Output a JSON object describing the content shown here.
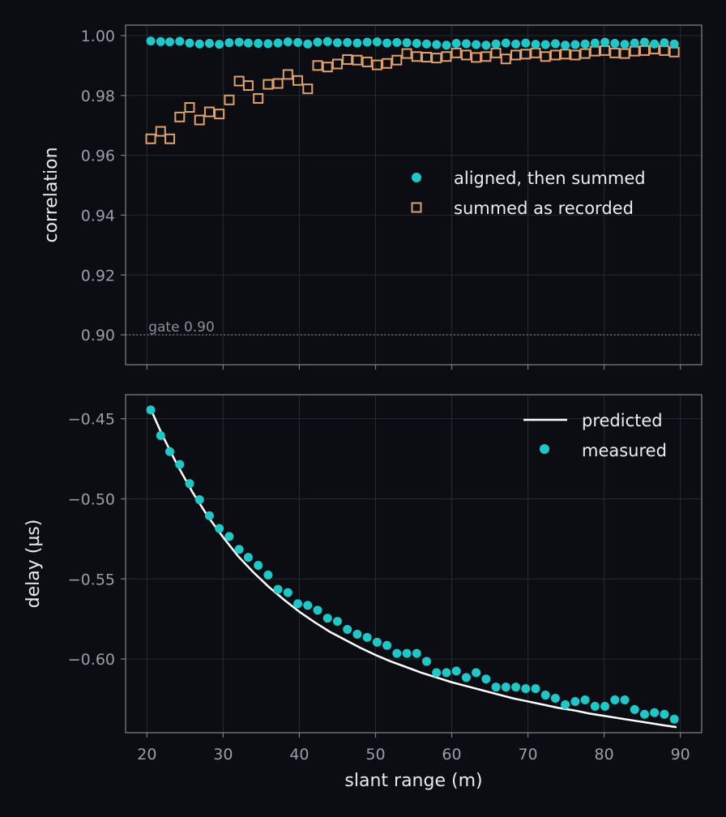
{
  "colors": {
    "background": "#0b0d12",
    "aligned": "#1ec8c8",
    "recorded": "#e0a06a",
    "predicted": "#ffffff",
    "measured": "#1ec8c8",
    "grid": "#262a31",
    "spine": "#7a7d82"
  },
  "chart_data": [
    {
      "type": "scatter",
      "ylabel": "correlation",
      "xlabel": "",
      "xlim": [
        17.2,
        92.8
      ],
      "ylim": [
        0.89,
        1.0035
      ],
      "xticks": [
        20,
        30,
        40,
        50,
        60,
        70,
        80,
        90
      ],
      "yticks": [
        0.9,
        0.92,
        0.94,
        0.96,
        0.98,
        1.0
      ],
      "ytick_labels": [
        "0.90",
        "0.92",
        "0.94",
        "0.96",
        "0.98",
        "1.00"
      ],
      "grid": true,
      "legend_position": "right",
      "annotations": [
        {
          "text": "gate 0.90",
          "y": 0.9
        }
      ],
      "reference_line": {
        "y": 0.9,
        "style": "dotted"
      },
      "series": [
        {
          "name": "aligned, then summed",
          "marker": "circle",
          "x": [
            20.5,
            21.8,
            23.0,
            24.3,
            25.6,
            26.9,
            28.2,
            29.5,
            30.8,
            32.1,
            33.3,
            34.6,
            35.9,
            37.2,
            38.5,
            39.8,
            41.1,
            42.4,
            43.7,
            45.0,
            46.3,
            47.6,
            48.9,
            50.2,
            51.5,
            52.8,
            54.1,
            55.4,
            56.7,
            58.0,
            59.3,
            60.6,
            61.9,
            63.2,
            64.5,
            65.8,
            67.1,
            68.4,
            69.7,
            71.0,
            72.3,
            73.6,
            74.9,
            76.2,
            77.5,
            78.8,
            80.1,
            81.4,
            82.7,
            84.0,
            85.3,
            86.6,
            87.9,
            89.2
          ],
          "y": [
            0.9982,
            0.998,
            0.9979,
            0.9981,
            0.9975,
            0.9972,
            0.9974,
            0.9971,
            0.9976,
            0.9978,
            0.9975,
            0.9974,
            0.9973,
            0.9975,
            0.9979,
            0.9977,
            0.9972,
            0.9978,
            0.998,
            0.9976,
            0.9977,
            0.9975,
            0.9978,
            0.9979,
            0.9975,
            0.9977,
            0.9976,
            0.9974,
            0.9972,
            0.997,
            0.9968,
            0.9974,
            0.9973,
            0.997,
            0.9968,
            0.9972,
            0.9975,
            0.9972,
            0.9975,
            0.9971,
            0.997,
            0.9973,
            0.9968,
            0.997,
            0.9972,
            0.9975,
            0.9978,
            0.9974,
            0.9971,
            0.9975,
            0.9978,
            0.9972,
            0.9976,
            0.9972
          ]
        },
        {
          "name": "summed as recorded",
          "marker": "square",
          "x": [
            20.5,
            21.8,
            23.0,
            24.3,
            25.6,
            26.9,
            28.2,
            29.5,
            30.8,
            32.1,
            33.3,
            34.6,
            35.9,
            37.2,
            38.5,
            39.8,
            41.1,
            42.4,
            43.7,
            45.0,
            46.3,
            47.6,
            48.9,
            50.2,
            51.5,
            52.8,
            54.1,
            55.4,
            56.7,
            58.0,
            59.3,
            60.6,
            61.9,
            63.2,
            64.5,
            65.8,
            67.1,
            68.4,
            69.7,
            71.0,
            72.3,
            73.6,
            74.9,
            76.2,
            77.5,
            78.8,
            80.1,
            81.4,
            82.7,
            84.0,
            85.3,
            86.6,
            87.9,
            89.2
          ],
          "y": [
            0.9655,
            0.968,
            0.9655,
            0.9728,
            0.976,
            0.9718,
            0.9745,
            0.9738,
            0.9785,
            0.9848,
            0.9833,
            0.979,
            0.9837,
            0.984,
            0.987,
            0.985,
            0.9822,
            0.99,
            0.9895,
            0.9905,
            0.992,
            0.9918,
            0.9912,
            0.9902,
            0.9907,
            0.9918,
            0.994,
            0.993,
            0.9928,
            0.9925,
            0.993,
            0.9942,
            0.9935,
            0.9927,
            0.993,
            0.9942,
            0.9922,
            0.9935,
            0.9938,
            0.9942,
            0.993,
            0.9935,
            0.9938,
            0.9935,
            0.994,
            0.9948,
            0.995,
            0.9942,
            0.994,
            0.9948,
            0.995,
            0.9955,
            0.995,
            0.9945
          ]
        }
      ]
    },
    {
      "type": "line",
      "xlabel": "slant range (m)",
      "ylabel": "delay (µs)",
      "xlim": [
        17.2,
        92.8
      ],
      "ylim": [
        -0.646,
        -0.435
      ],
      "xticks": [
        20,
        30,
        40,
        50,
        60,
        70,
        80,
        90
      ],
      "yticks": [
        -0.6,
        -0.55,
        -0.5,
        -0.45
      ],
      "ytick_labels": [
        "−0.60",
        "−0.55",
        "−0.50",
        "−0.45"
      ],
      "grid": true,
      "legend_position": "top-right",
      "series": [
        {
          "name": "predicted",
          "style": "line",
          "x": [
            20.5,
            22,
            24,
            26,
            28,
            30,
            32,
            34,
            36,
            38,
            40,
            42,
            44,
            46,
            48,
            50,
            52,
            54,
            56,
            58,
            60,
            62,
            64,
            66,
            68,
            70,
            72,
            74,
            76,
            78,
            80,
            82,
            84,
            86,
            88,
            89.5
          ],
          "y": [
            -0.444,
            -0.46,
            -0.479,
            -0.496,
            -0.511,
            -0.524,
            -0.536,
            -0.546,
            -0.555,
            -0.563,
            -0.5705,
            -0.577,
            -0.583,
            -0.588,
            -0.593,
            -0.5975,
            -0.6015,
            -0.605,
            -0.6085,
            -0.6115,
            -0.6145,
            -0.617,
            -0.6195,
            -0.622,
            -0.6245,
            -0.6265,
            -0.6285,
            -0.6305,
            -0.632,
            -0.634,
            -0.6355,
            -0.637,
            -0.6385,
            -0.64,
            -0.6415,
            -0.6425
          ]
        },
        {
          "name": "measured",
          "style": "markers",
          "x": [
            20.5,
            21.8,
            23.0,
            24.3,
            25.6,
            26.9,
            28.2,
            29.5,
            30.8,
            32.1,
            33.3,
            34.6,
            35.9,
            37.2,
            38.5,
            39.8,
            41.1,
            42.4,
            43.7,
            45.0,
            46.3,
            47.6,
            48.9,
            50.2,
            51.5,
            52.8,
            54.1,
            55.4,
            56.7,
            58.0,
            59.3,
            60.6,
            61.9,
            63.2,
            64.5,
            65.8,
            67.1,
            68.4,
            69.7,
            71.0,
            72.3,
            73.6,
            74.9,
            76.2,
            77.5,
            78.8,
            80.1,
            81.4,
            82.7,
            84.0,
            85.3,
            86.6,
            87.9,
            89.2
          ],
          "y": [
            -0.4445,
            -0.4605,
            -0.4705,
            -0.4785,
            -0.4905,
            -0.5005,
            -0.5105,
            -0.5185,
            -0.5235,
            -0.5315,
            -0.5365,
            -0.5415,
            -0.5475,
            -0.5565,
            -0.5585,
            -0.5655,
            -0.5665,
            -0.5695,
            -0.5745,
            -0.5765,
            -0.5815,
            -0.5845,
            -0.5865,
            -0.5895,
            -0.5915,
            -0.5965,
            -0.5965,
            -0.5965,
            -0.6015,
            -0.6085,
            -0.6085,
            -0.6075,
            -0.6115,
            -0.6085,
            -0.6125,
            -0.6175,
            -0.6175,
            -0.6175,
            -0.6185,
            -0.6185,
            -0.6225,
            -0.6245,
            -0.6285,
            -0.6265,
            -0.6255,
            -0.6295,
            -0.6295,
            -0.6255,
            -0.6255,
            -0.6315,
            -0.6345,
            -0.6335,
            -0.6345,
            -0.6375
          ]
        }
      ]
    }
  ]
}
